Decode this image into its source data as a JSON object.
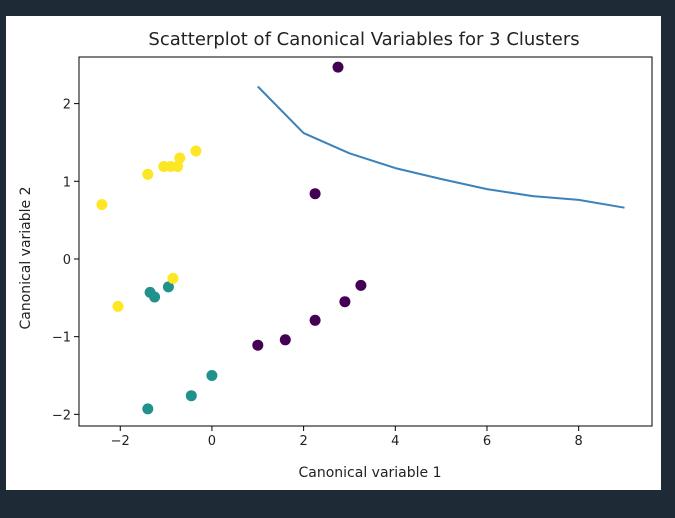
{
  "chart_data": {
    "type": "scatter",
    "title": "Scatterplot of Canonical Variables for 3 Clusters",
    "xlabel": "Canonical variable 1",
    "ylabel": "Canonical variable 2",
    "xlim": [
      -2.9,
      9.6
    ],
    "ylim": [
      -2.15,
      2.6
    ],
    "xticks": [
      -2,
      0,
      2,
      4,
      6,
      8
    ],
    "yticks": [
      -2,
      -1,
      0,
      1,
      2
    ],
    "xtick_labels": [
      "−2",
      "0",
      "2",
      "4",
      "6",
      "8"
    ],
    "ytick_labels": [
      "−2",
      "−1",
      "0",
      "1",
      "2"
    ],
    "grid": false,
    "legend": null,
    "series": [
      {
        "kind": "scatter",
        "color": "#440154",
        "points": [
          {
            "x": 2.75,
            "y": 2.47
          },
          {
            "x": 2.25,
            "y": 0.84
          },
          {
            "x": 3.25,
            "y": -0.34
          },
          {
            "x": 2.9,
            "y": -0.55
          },
          {
            "x": 2.25,
            "y": -0.79
          },
          {
            "x": 1.6,
            "y": -1.04
          },
          {
            "x": 1.0,
            "y": -1.11
          }
        ]
      },
      {
        "kind": "scatter",
        "color": "#21918c",
        "points": [
          {
            "x": -1.35,
            "y": -0.43
          },
          {
            "x": -1.25,
            "y": -0.49
          },
          {
            "x": -0.95,
            "y": -0.36
          },
          {
            "x": 0.0,
            "y": -1.5
          },
          {
            "x": -0.45,
            "y": -1.76
          },
          {
            "x": -1.4,
            "y": -1.93
          }
        ]
      },
      {
        "kind": "scatter",
        "color": "#fde725",
        "points": [
          {
            "x": -2.4,
            "y": 0.7
          },
          {
            "x": -2.05,
            "y": -0.61
          },
          {
            "x": -0.85,
            "y": -0.25
          },
          {
            "x": -1.4,
            "y": 1.09
          },
          {
            "x": -1.05,
            "y": 1.19
          },
          {
            "x": -0.9,
            "y": 1.19
          },
          {
            "x": -0.75,
            "y": 1.19
          },
          {
            "x": -0.7,
            "y": 1.3
          },
          {
            "x": -0.35,
            "y": 1.39
          }
        ]
      },
      {
        "kind": "line",
        "color": "#3b82bb",
        "points": [
          {
            "x": 1,
            "y": 2.22
          },
          {
            "x": 2,
            "y": 1.62
          },
          {
            "x": 3,
            "y": 1.36
          },
          {
            "x": 4,
            "y": 1.17
          },
          {
            "x": 5,
            "y": 1.03
          },
          {
            "x": 6,
            "y": 0.9
          },
          {
            "x": 7,
            "y": 0.81
          },
          {
            "x": 8,
            "y": 0.76
          },
          {
            "x": 9,
            "y": 0.66
          }
        ]
      }
    ]
  }
}
